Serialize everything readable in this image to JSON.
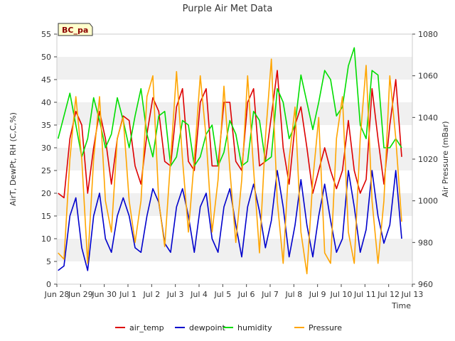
{
  "chart_data": {
    "type": "line",
    "title": "Purple Air Met Data",
    "xlabel": "Time",
    "ylabel": "AirT, DewPt, RH (C,C,%)",
    "ylabel_right": "Air Pressure (mBar)",
    "badge": "BC_pa",
    "x_ticks": [
      "Jun 28",
      "Jun 29",
      "Jun 30",
      "Jul 1",
      "Jul 2",
      "Jul 3",
      "Jul 4",
      "Jul 5",
      "Jul 6",
      "Jul 7",
      "Jul 8",
      "Jul 9",
      "Jul 10",
      "Jul 11",
      "Jul 12",
      "Jul 13"
    ],
    "y_left_ticks": [
      "0",
      "5",
      "10",
      "15",
      "20",
      "25",
      "30",
      "35",
      "40",
      "45",
      "50",
      "55"
    ],
    "y_right_ticks": [
      "960",
      "980",
      "1000",
      "1020",
      "1040",
      "1060",
      "1080"
    ],
    "ylim_left": [
      0,
      55
    ],
    "ylim_right": [
      960,
      1080
    ],
    "grid": "horizontal bands",
    "legend_position": "bottom",
    "colors": {
      "air_temp": "#dd0000",
      "dewpoint": "#0000cc",
      "humidity": "#00dd00",
      "Pressure": "#ffa500"
    },
    "x_day_offsets": [
      0.0,
      0.25,
      0.5,
      0.75,
      1.0,
      1.25,
      1.5,
      1.75,
      2.0,
      2.25,
      2.5,
      2.75,
      3.0,
      3.25,
      3.5,
      3.75,
      4.0,
      4.25,
      4.5,
      4.75,
      5.0,
      5.25,
      5.5,
      5.75,
      6.0,
      6.25,
      6.5,
      6.75,
      7.0,
      7.25,
      7.5,
      7.75,
      8.0,
      8.25,
      8.5,
      8.75,
      9.0,
      9.25,
      9.5,
      9.75,
      10.0,
      10.25,
      10.5,
      10.75,
      11.0,
      11.25,
      11.5,
      11.75,
      12.0,
      12.25,
      12.5,
      12.75,
      13.0,
      13.25,
      13.5,
      13.75,
      14.0,
      14.25,
      14.5,
      14.75,
      15.0
    ],
    "series": [
      {
        "name": "air_temp",
        "x_start_day": 0.05,
        "values": [
          20,
          19,
          32,
          38,
          35,
          20,
          30,
          38,
          32,
          22,
          32,
          37,
          36,
          26,
          22,
          33,
          41,
          38,
          27,
          26,
          39,
          43,
          27,
          25,
          40,
          43,
          26,
          26,
          40,
          40,
          27,
          25,
          40,
          43,
          26,
          27,
          37,
          47,
          30,
          22,
          35,
          39,
          30,
          20,
          25,
          30,
          25,
          21,
          25,
          36,
          25,
          20,
          23,
          43,
          32,
          22,
          35,
          45,
          28
        ]
      },
      {
        "name": "dewpoint",
        "x_start_day": 0.05,
        "values": [
          3,
          4,
          15,
          19,
          8,
          3,
          15,
          20,
          10,
          7,
          15,
          19,
          15,
          8,
          7,
          15,
          21,
          18,
          9,
          7,
          17,
          21,
          15,
          7,
          17,
          20,
          10,
          7,
          17,
          21,
          13,
          6,
          17,
          22,
          16,
          8,
          14,
          25,
          17,
          6,
          13,
          23,
          13,
          6,
          15,
          22,
          14,
          7,
          10,
          25,
          17,
          7,
          12,
          25,
          15,
          9,
          13,
          25,
          10
        ]
      },
      {
        "name": "humidity",
        "x_start_day": 0.05,
        "values": [
          32,
          37,
          42,
          35,
          28,
          32,
          41,
          36,
          30,
          33,
          41,
          36,
          30,
          37,
          43,
          33,
          28,
          37,
          38,
          26,
          28,
          36,
          35,
          26,
          28,
          33,
          35,
          26,
          29,
          36,
          33,
          26,
          27,
          38,
          36,
          27,
          28,
          43,
          40,
          32,
          35,
          46,
          40,
          34,
          40,
          47,
          45,
          37,
          39,
          48,
          52,
          35,
          32,
          47,
          46,
          30,
          30,
          32,
          30
        ]
      },
      {
        "name": "Pressure",
        "x_start_day": 0.05,
        "values": [
          975,
          972,
          1020,
          1050,
          1020,
          970,
          1020,
          1050,
          1000,
          985,
          1030,
          1040,
          1000,
          980,
          1000,
          1050,
          1060,
          1000,
          978,
          1020,
          1062,
          1020,
          985,
          1020,
          1060,
          1030,
          985,
          1010,
          1055,
          1015,
          980,
          1010,
          1060,
          1015,
          975,
          1030,
          1068,
          1000,
          970,
          1020,
          1045,
          985,
          965,
          1010,
          1040,
          975,
          970,
          1030,
          1050,
          985,
          970,
          1030,
          1065,
          1000,
          970,
          1000,
          1060,
          1030,
          990
        ]
      }
    ]
  }
}
